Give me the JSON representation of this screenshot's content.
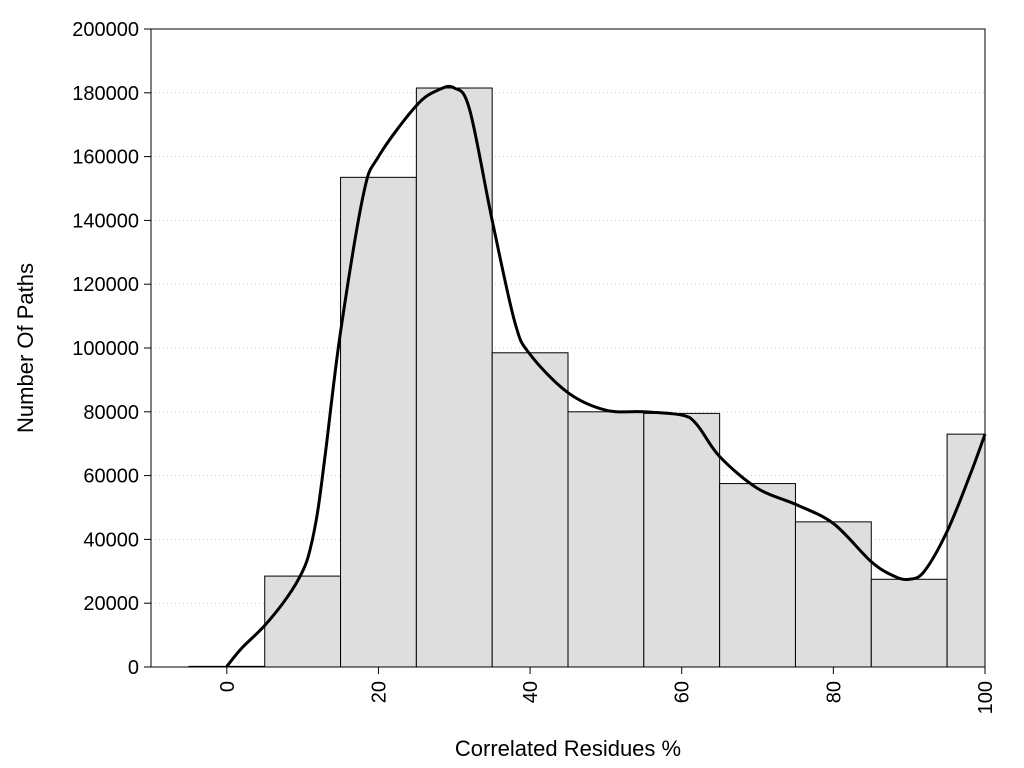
{
  "chart_data": {
    "type": "bar",
    "title": "",
    "xlabel": "Correlated Residues %",
    "ylabel": "Number Of Paths",
    "xlim": [
      -10,
      100
    ],
    "ylim": [
      0,
      200000
    ],
    "bin_width": 10,
    "grid": true,
    "bar_color": "#dedede",
    "curve_color": "#000000",
    "x_ticks": [
      "0",
      "20",
      "40",
      "60",
      "80",
      "100"
    ],
    "y_ticks": [
      "0",
      "20000",
      "40000",
      "60000",
      "80000",
      "100000",
      "120000",
      "140000",
      "160000",
      "180000",
      "200000"
    ],
    "categories": [
      "0",
      "10",
      "20",
      "30",
      "40",
      "50",
      "60",
      "70",
      "80",
      "90",
      "100"
    ],
    "values": [
      200,
      28500,
      153500,
      181500,
      98500,
      80000,
      79500,
      57500,
      45500,
      27500,
      73000
    ],
    "series": [
      {
        "type": "line",
        "x": [
          0,
          2,
          5,
          8,
          10,
          11,
          12,
          13,
          15,
          18,
          20,
          25,
          28,
          30,
          32,
          35,
          38,
          40,
          45,
          50,
          55,
          60,
          62,
          65,
          70,
          75,
          80,
          85,
          88,
          90,
          92,
          95,
          98,
          100
        ],
        "y": [
          200,
          6000,
          13000,
          22000,
          30000,
          37000,
          49000,
          67000,
          105000,
          148000,
          160000,
          176000,
          181000,
          181500,
          175000,
          140000,
          108000,
          98000,
          86000,
          80500,
          80000,
          79000,
          76000,
          66000,
          56000,
          51000,
          45000,
          33000,
          28500,
          27500,
          30000,
          42500,
          60000,
          73000
        ]
      }
    ]
  }
}
